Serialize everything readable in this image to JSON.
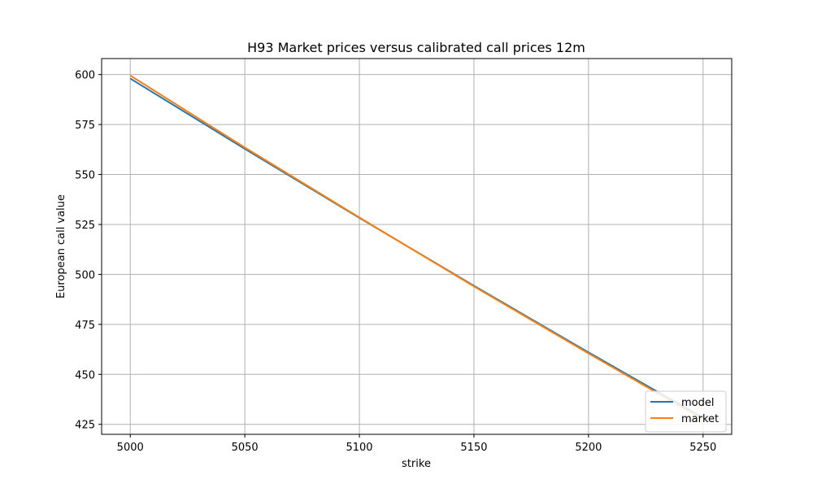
{
  "chart_data": {
    "type": "line",
    "title": "H93 Market prices versus calibrated call prices 12m",
    "xlabel": "strike",
    "ylabel": "European call value",
    "xlim": [
      4987.5,
      5262.5
    ],
    "ylim": [
      420,
      608
    ],
    "xticks": [
      5000,
      5050,
      5100,
      5150,
      5200,
      5250
    ],
    "yticks": [
      425,
      450,
      475,
      500,
      525,
      550,
      575,
      600
    ],
    "grid": true,
    "legend_position": "lower right",
    "series": [
      {
        "name": "model",
        "color": "#1f77b4",
        "x": [
          5000,
          5050,
          5100,
          5150,
          5200,
          5250
        ],
        "y": [
          598.0,
          562.8,
          528.3,
          494.3,
          461.0,
          428.3
        ]
      },
      {
        "name": "market",
        "color": "#ff7f0e",
        "x": [
          5000,
          5050,
          5100,
          5150,
          5200,
          5250
        ],
        "y": [
          599.5,
          563.5,
          528.5,
          494.0,
          460.5,
          427.5
        ]
      }
    ]
  }
}
